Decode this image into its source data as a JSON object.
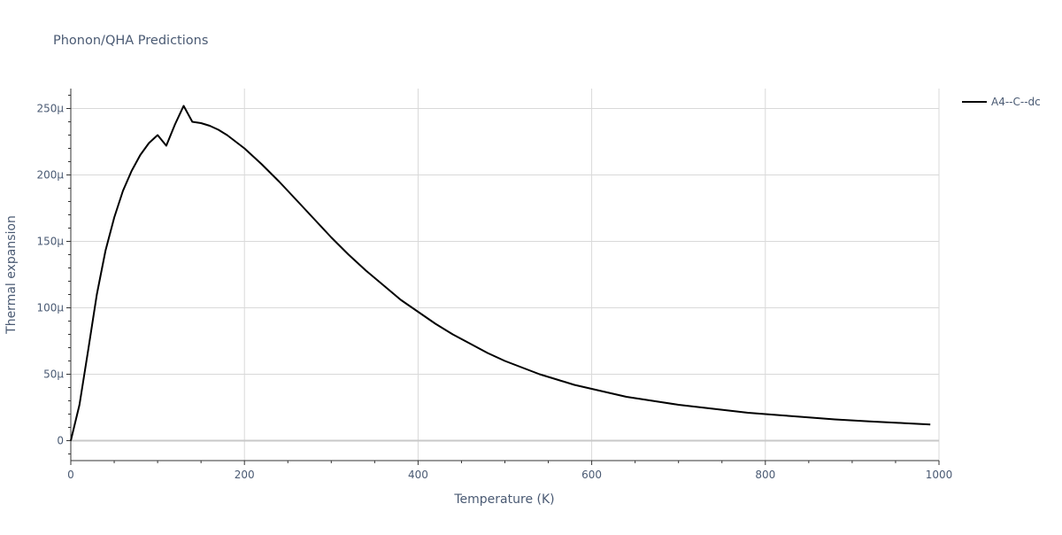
{
  "chart_data": {
    "type": "line",
    "title": "Phonon/QHA Predictions",
    "xlabel": "Temperature (K)",
    "ylabel": "Thermal expansion",
    "xlim": [
      0,
      1000
    ],
    "ylim": [
      -15,
      265
    ],
    "x_ticks": [
      0,
      200,
      400,
      600,
      800,
      1000
    ],
    "x_tick_labels": [
      "0",
      "200",
      "400",
      "600",
      "800",
      "1000"
    ],
    "y_ticks": [
      0,
      50,
      100,
      150,
      200,
      250
    ],
    "y_tick_labels": [
      "0",
      "50µ",
      "100µ",
      "150µ",
      "200µ",
      "250µ"
    ],
    "grid": true,
    "legend_position": "top-right",
    "series": [
      {
        "name": "A4--C--dc",
        "color": "#000000",
        "x": [
          0,
          10,
          20,
          30,
          40,
          50,
          60,
          70,
          80,
          90,
          100,
          110,
          120,
          130,
          140,
          150,
          160,
          170,
          180,
          200,
          220,
          240,
          260,
          280,
          300,
          320,
          340,
          360,
          380,
          400,
          420,
          440,
          460,
          480,
          500,
          520,
          540,
          560,
          580,
          600,
          620,
          640,
          660,
          680,
          700,
          720,
          740,
          760,
          780,
          800,
          820,
          840,
          860,
          880,
          900,
          920,
          940,
          960,
          980,
          990
        ],
        "y": [
          0,
          27,
          68,
          110,
          143,
          168,
          188,
          203,
          215,
          224,
          230,
          222,
          238,
          252,
          240,
          239,
          237,
          234,
          230,
          220,
          208,
          195,
          181,
          167,
          153,
          140,
          128,
          117,
          106,
          97,
          88,
          80,
          73,
          66,
          60,
          55,
          50,
          46,
          42,
          39,
          36,
          33,
          31,
          29,
          27,
          25.5,
          24,
          22.5,
          21,
          20,
          19,
          18,
          17,
          16,
          15.3,
          14.5,
          13.8,
          13.2,
          12.5,
          12.2
        ]
      }
    ]
  }
}
